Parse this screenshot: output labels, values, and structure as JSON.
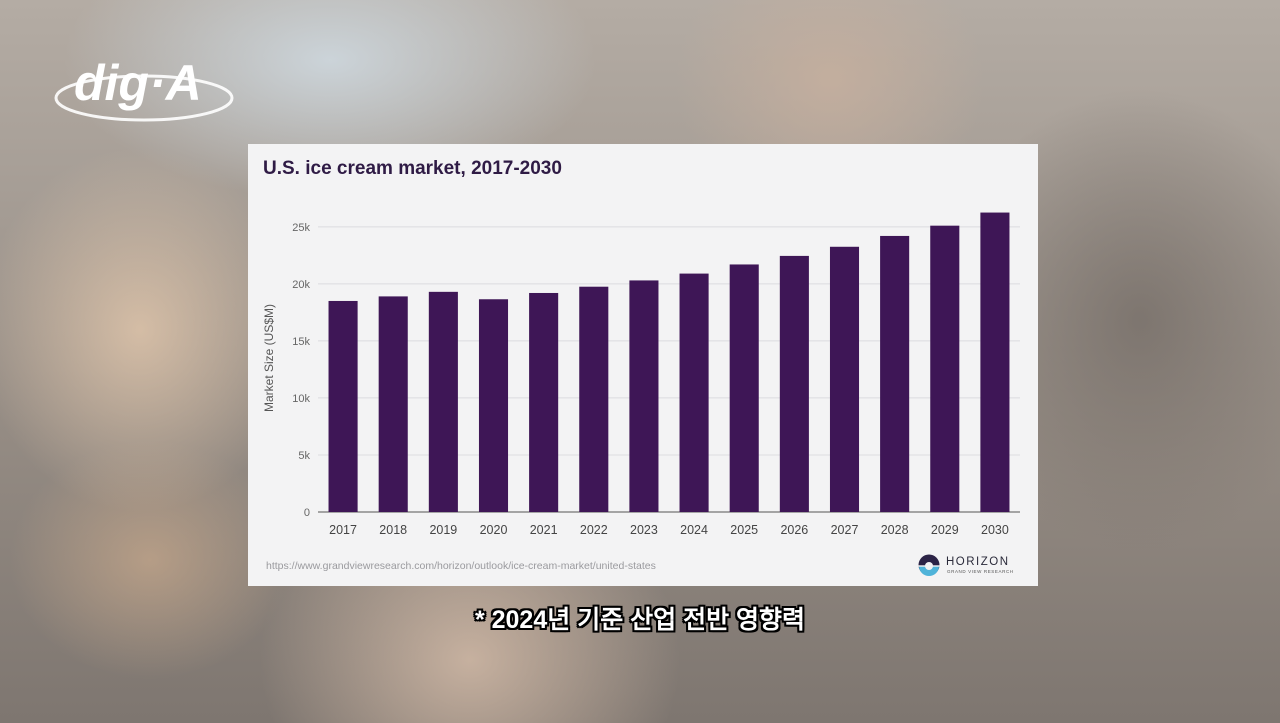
{
  "logo": {
    "text": "dig·A"
  },
  "card": {
    "source_url": "https://www.grandviewresearch.com/horizon/outlook/ice-cream-market/united-states",
    "brand_name": "HORIZON",
    "brand_sub": "GRAND VIEW RESEARCH"
  },
  "caption": "* 2024년 기준 산업 전반 영향력",
  "colors": {
    "bar": "#3e1656",
    "title": "#2f1b45",
    "grid": "#dcdcdf",
    "card_bg": "#f3f3f4"
  },
  "chart_data": {
    "type": "bar",
    "title": "U.S. ice cream market, 2017-2030",
    "xlabel": "",
    "ylabel": "Market Size (US$M)",
    "categories": [
      "2017",
      "2018",
      "2019",
      "2020",
      "2021",
      "2022",
      "2023",
      "2024",
      "2025",
      "2026",
      "2027",
      "2028",
      "2029",
      "2030"
    ],
    "values": [
      18500,
      18900,
      19300,
      18650,
      19200,
      19750,
      20300,
      20900,
      21700,
      22450,
      23250,
      24200,
      25100,
      26250
    ],
    "ylim": [
      0,
      27000
    ],
    "yticks": [
      0,
      5000,
      10000,
      15000,
      20000,
      25000
    ],
    "ytick_labels": [
      "0",
      "5k",
      "10k",
      "15k",
      "20k",
      "25k"
    ],
    "grid": true,
    "legend": "none"
  }
}
